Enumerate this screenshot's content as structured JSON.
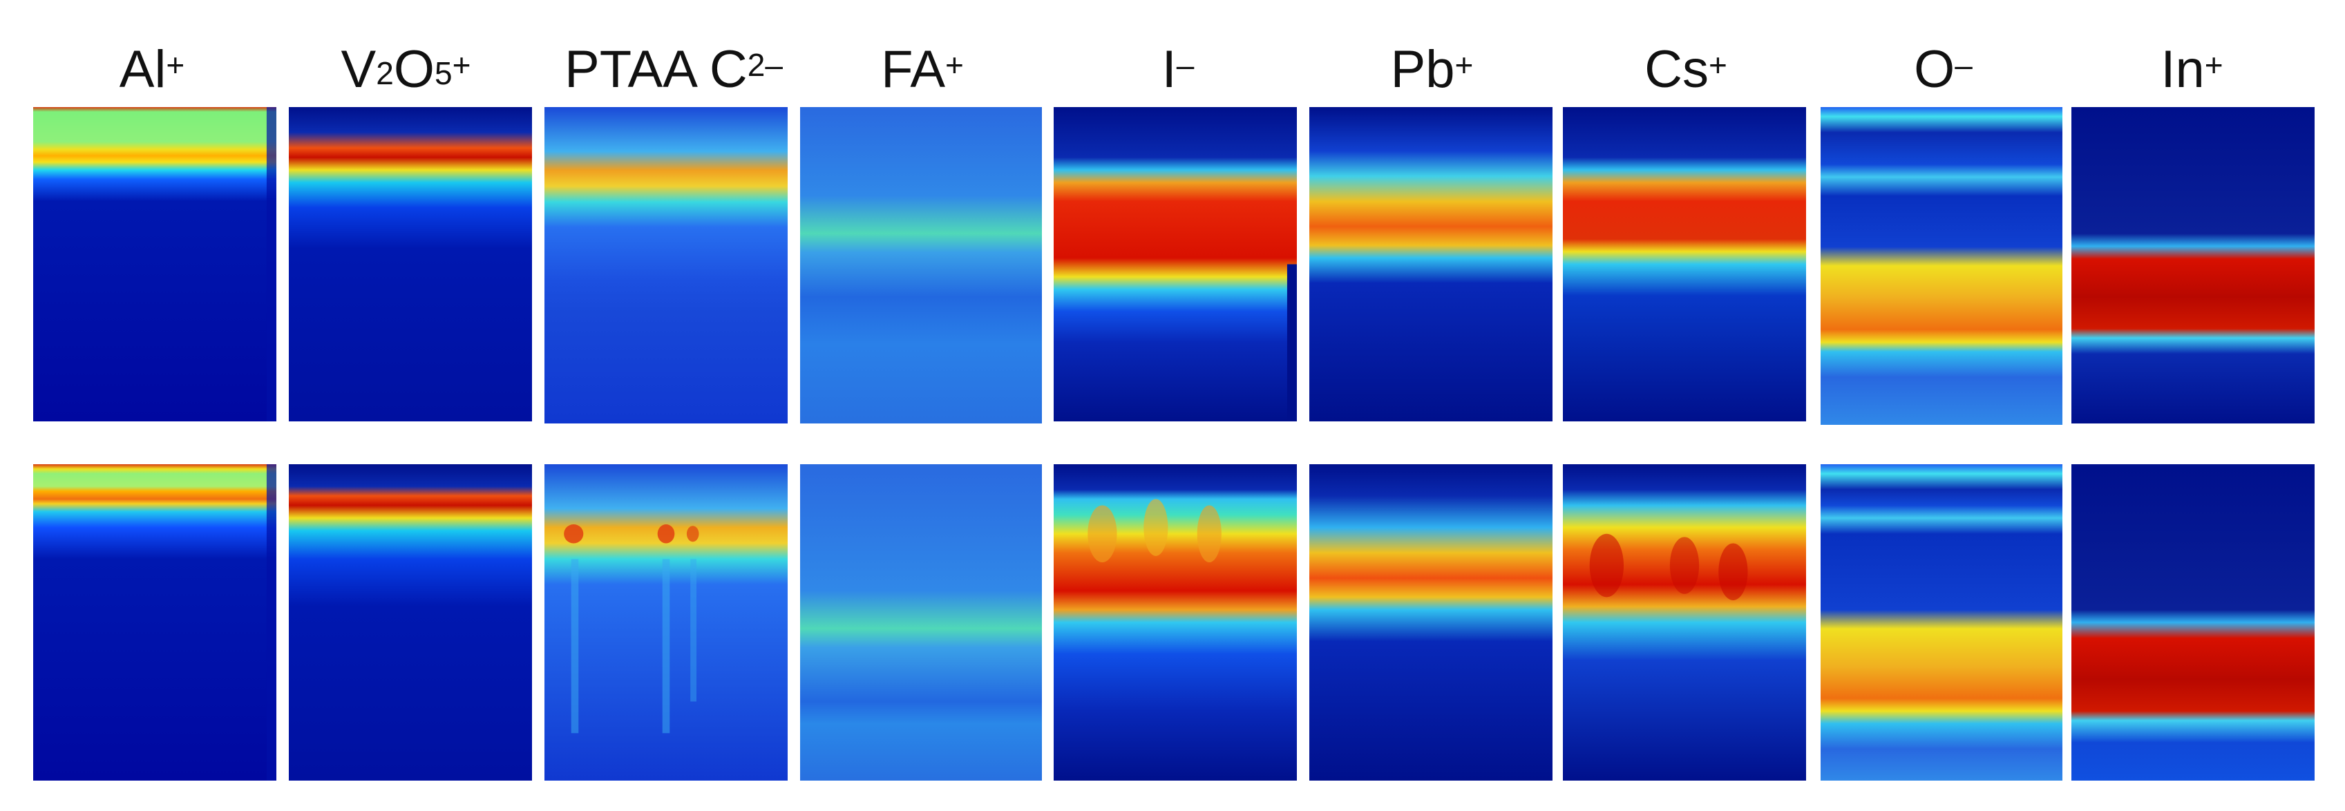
{
  "panels": [
    {
      "id": "al",
      "label": "Al",
      "sup": "+"
    },
    {
      "id": "v2o5",
      "label_parts": [
        "V",
        "2",
        "O",
        "5"
      ],
      "sup": "+"
    },
    {
      "id": "ptaa",
      "label": "PTAA C",
      "sup": "2–"
    },
    {
      "id": "fa",
      "label": "FA",
      "sup": "+"
    },
    {
      "id": "i",
      "label": "I",
      "sup": "–"
    },
    {
      "id": "pb",
      "label": "Pb",
      "sup": "+"
    },
    {
      "id": "cs",
      "label": "Cs",
      "sup": "+"
    },
    {
      "id": "o",
      "label": "O",
      "sup": "–"
    },
    {
      "id": "in",
      "label": "In",
      "sup": "+"
    }
  ],
  "rows": 2,
  "colormap": "jet"
}
